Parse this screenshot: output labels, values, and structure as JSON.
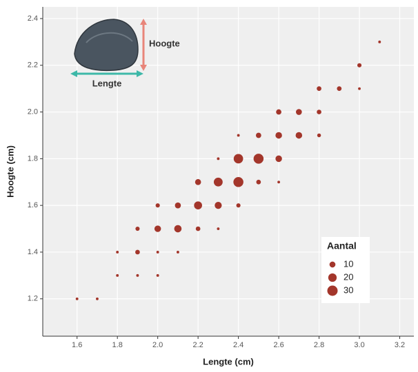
{
  "chart_data": {
    "type": "scatter",
    "x_label": "Lengte (cm)",
    "y_label": "Hoogte (cm)",
    "annotations": {
      "height": "Hoogte",
      "length": "Lengte"
    },
    "color": "#a3362b",
    "x": [
      1.6,
      1.7,
      1.8,
      1.9,
      2.0,
      1.8,
      1.9,
      2.0,
      2.1,
      1.9,
      2.0,
      2.1,
      2.2,
      2.3,
      2.0,
      2.1,
      2.2,
      2.3,
      2.4,
      2.2,
      2.3,
      2.4,
      2.5,
      2.6,
      2.3,
      2.4,
      2.5,
      2.6,
      2.4,
      2.5,
      2.6,
      2.7,
      2.8,
      2.6,
      2.7,
      2.8,
      2.8,
      2.9,
      3.0,
      3.0,
      3.1
    ],
    "y": [
      1.2,
      1.2,
      1.3,
      1.3,
      1.3,
      1.4,
      1.4,
      1.4,
      1.4,
      1.5,
      1.5,
      1.5,
      1.5,
      1.5,
      1.6,
      1.6,
      1.6,
      1.6,
      1.6,
      1.7,
      1.7,
      1.7,
      1.7,
      1.7,
      1.8,
      1.8,
      1.8,
      1.8,
      1.9,
      1.9,
      1.9,
      1.9,
      1.9,
      2.0,
      2.0,
      2.0,
      2.1,
      2.1,
      2.1,
      2.2,
      2.3
    ],
    "sizes": [
      2,
      2,
      2,
      2,
      2,
      2,
      6,
      2,
      2,
      5,
      12,
      15,
      6,
      2,
      5,
      10,
      18,
      14,
      5,
      10,
      22,
      28,
      6,
      2,
      2,
      25,
      28,
      12,
      2,
      8,
      12,
      12,
      4,
      8,
      10,
      6,
      6,
      6,
      2,
      5,
      2
    ],
    "xlim": [
      1.43,
      3.27
    ],
    "xticks": [
      1.6,
      1.8,
      {
        "value": 2.0,
        "label": "2.0"
      },
      2.2,
      2.4,
      2.6,
      2.8,
      {
        "value": 3.0,
        "label": "3.0"
      },
      3.2
    ],
    "ylim": [
      1.04,
      2.45
    ],
    "yticks": [
      1.2,
      1.4,
      1.6,
      1.8,
      {
        "value": 2.0,
        "label": "2.0"
      },
      2.2,
      2.4
    ],
    "grid": true,
    "size_legend": {
      "title": "Aantal",
      "values": [
        10,
        20,
        30
      ]
    }
  }
}
